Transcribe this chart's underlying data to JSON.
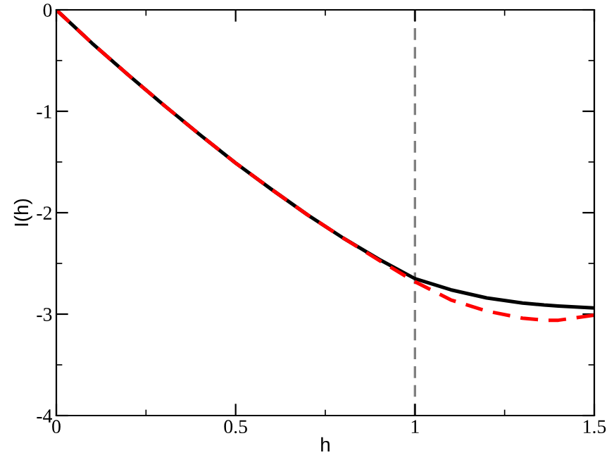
{
  "chart_data": {
    "type": "line",
    "xlabel": "h",
    "ylabel": "I(h)",
    "xlim": [
      0,
      1.5
    ],
    "ylim": [
      -4,
      0
    ],
    "xticks": [
      0,
      0.5,
      1,
      1.5
    ],
    "yticks": [
      0,
      -1,
      -2,
      -3,
      -4
    ],
    "grid": false,
    "legend": false,
    "marker": "none",
    "x": [
      0,
      0.1,
      0.2,
      0.3,
      0.4,
      0.5,
      0.6,
      0.7,
      0.8,
      0.9,
      1.0,
      1.1,
      1.2,
      1.3,
      1.36,
      1.4,
      1.5
    ],
    "series": [
      {
        "color": "#000000",
        "line_style": "solid",
        "values": [
          0,
          -0.33,
          -0.64,
          -0.94,
          -1.23,
          -1.51,
          -1.77,
          -2.02,
          -2.25,
          -2.46,
          -2.65,
          -2.76,
          -2.84,
          -2.89,
          -2.91,
          -2.92,
          -2.94
        ]
      },
      {
        "color": "#ff0000",
        "line_style": "dashed",
        "values": [
          0,
          -0.33,
          -0.64,
          -0.94,
          -1.23,
          -1.51,
          -1.77,
          -2.02,
          -2.25,
          -2.47,
          -2.68,
          -2.86,
          -2.97,
          -3.04,
          -3.06,
          -3.06,
          -3.01
        ]
      }
    ],
    "ref_lines": [
      {
        "axis": "x",
        "value": 1,
        "color": "#808080",
        "line_style": "dashed"
      }
    ]
  }
}
